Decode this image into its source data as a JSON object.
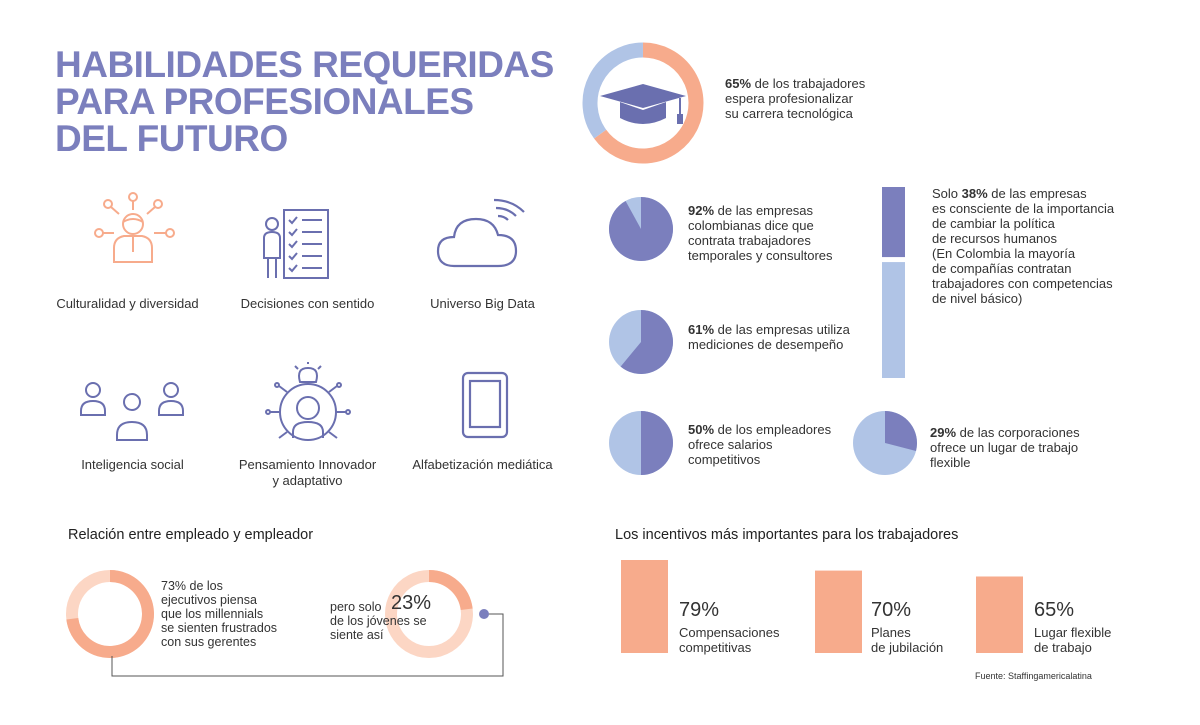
{
  "title_lines": [
    "HABILIDADES REQUERIDAS",
    "PARA PROFESIONALES",
    "DEL FUTURO"
  ],
  "colors": {
    "blue": "#7b7fbd",
    "light_blue": "#b0c4e6",
    "orange": "#f7ab8c",
    "light_orange": "#fcd6c4",
    "icon_blue": "#6a6faf"
  },
  "skills": [
    {
      "label": "Culturalidad y diversidad",
      "icon": "person-network-icon"
    },
    {
      "label": "Decisiones con sentido",
      "icon": "checklist-person-icon"
    },
    {
      "label": "Universo Big Data",
      "icon": "cloud-wifi-icon"
    },
    {
      "label": "Inteligencia social",
      "icon": "people-group-icon"
    },
    {
      "label": "Pensamiento Innovador",
      "label2": "y adaptativo",
      "icon": "brain-lightbulb-icon"
    },
    {
      "label": "Alfabetización mediática",
      "icon": "tablet-icon"
    }
  ],
  "stats": {
    "career": {
      "pct": "65%",
      "text1": " de los trabajadores",
      "text2": "espera profesionalizar",
      "text3": "su carrera tecnológica"
    },
    "temporary": {
      "pct": "92%",
      "text1": " de las empresas",
      "text2": "colombianas dice que",
      "text3": "contrata trabajadores",
      "text4": "temporales y consultores"
    },
    "measure": {
      "pct": "61%",
      "text1": " de las empresas utiliza",
      "text2": "mediciones de desempeño"
    },
    "salary": {
      "pct": "50%",
      "text1": " de los empleadores",
      "text2": "ofrece salarios",
      "text3": "competitivos"
    },
    "flexible": {
      "pct": "29%",
      "text1": " de las corporaciones",
      "text2": "ofrece un lugar de trabajo",
      "text3": "flexible"
    },
    "hr": {
      "prefix": "Solo ",
      "pct": "38%",
      "text1": " de las empresas",
      "lines": [
        "es consciente de la importancia",
        "de cambiar la política",
        "de recursos humanos",
        "(En Colombia la mayoría",
        "de compañías contratan",
        "trabajadores con competencias",
        "de nivel básico)"
      ]
    }
  },
  "relation": {
    "title": "Relación entre empleado y empleador",
    "left_lines": [
      "73% de los",
      "ejecutivos piensa",
      "que los millennials",
      "se sienten frustrados",
      "con sus gerentes"
    ],
    "right_pre1": "pero solo",
    "right_pct": "23%",
    "right_lines": [
      "de los jóvenes se",
      "siente así"
    ]
  },
  "incentives": {
    "title": "Los incentivos más importantes para los trabajadores",
    "source": "Fuente: Staffingamericalatina"
  },
  "chart_data": [
    {
      "type": "pie",
      "title": "",
      "values": [
        65,
        35
      ],
      "labels": [
        "65%",
        ""
      ]
    },
    {
      "type": "pie",
      "values": [
        92,
        8
      ],
      "labels": [
        "92%",
        ""
      ]
    },
    {
      "type": "pie",
      "values": [
        61,
        39
      ],
      "labels": [
        "61%",
        ""
      ]
    },
    {
      "type": "pie",
      "values": [
        50,
        50
      ],
      "labels": [
        "50%",
        ""
      ]
    },
    {
      "type": "pie",
      "values": [
        29,
        71
      ],
      "labels": [
        "29%",
        ""
      ]
    },
    {
      "type": "bar",
      "categories": [
        "38%"
      ],
      "values": [
        38
      ]
    },
    {
      "type": "pie",
      "values": [
        73,
        27
      ],
      "labels": [
        "73%",
        ""
      ]
    },
    {
      "type": "pie",
      "values": [
        23,
        77
      ],
      "labels": [
        "23%",
        ""
      ]
    },
    {
      "type": "bar",
      "title": "Los incentivos más importantes para los trabajadores",
      "categories": [
        "Compensaciones competitivas",
        "Planes de jubilación",
        "Lugar flexible de trabajo"
      ],
      "values": [
        79,
        70,
        65
      ],
      "label_lines": [
        [
          "Compensaciones",
          "competitivas"
        ],
        [
          "Planes",
          "de jubilación"
        ],
        [
          "Lugar flexible",
          "de trabajo"
        ]
      ],
      "pct_labels": [
        "79%",
        "70%",
        "65%"
      ]
    }
  ]
}
